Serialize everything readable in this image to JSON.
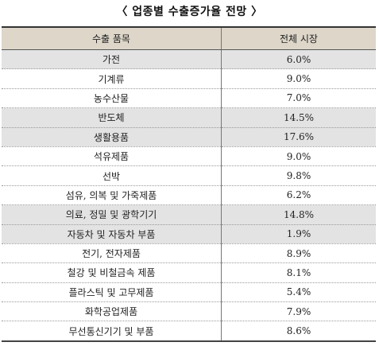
{
  "title": "〈 업종별 수출증가율 전망 〉",
  "table": {
    "headers": [
      "수출 품목",
      "전체 시장"
    ],
    "rows": [
      {
        "item": "가전",
        "value": "6.0%",
        "highlighted": true
      },
      {
        "item": "기계류",
        "value": "9.0%",
        "highlighted": false
      },
      {
        "item": "농수산물",
        "value": "7.0%",
        "highlighted": false
      },
      {
        "item": "반도체",
        "value": "14.5%",
        "highlighted": true
      },
      {
        "item": "생활용품",
        "value": "17.6%",
        "highlighted": true
      },
      {
        "item": "석유제품",
        "value": "9.0%",
        "highlighted": false
      },
      {
        "item": "선박",
        "value": "9.8%",
        "highlighted": false
      },
      {
        "item": "섬유, 의복 및 가죽제품",
        "value": "6.2%",
        "highlighted": false
      },
      {
        "item": "의료, 정밀 및 광학기기",
        "value": "14.8%",
        "highlighted": true
      },
      {
        "item": "자동차 및 자동차 부품",
        "value": "1.9%",
        "highlighted": true
      },
      {
        "item": "전기, 전자제품",
        "value": "8.9%",
        "highlighted": false
      },
      {
        "item": "철강 및 비철금속 제품",
        "value": "8.1%",
        "highlighted": false
      },
      {
        "item": "플라스틱 및 고무제품",
        "value": "5.4%",
        "highlighted": false
      },
      {
        "item": "화학공업제품",
        "value": "7.9%",
        "highlighted": false
      },
      {
        "item": "무선통신기기 및 부품",
        "value": "8.6%",
        "highlighted": false
      }
    ]
  }
}
